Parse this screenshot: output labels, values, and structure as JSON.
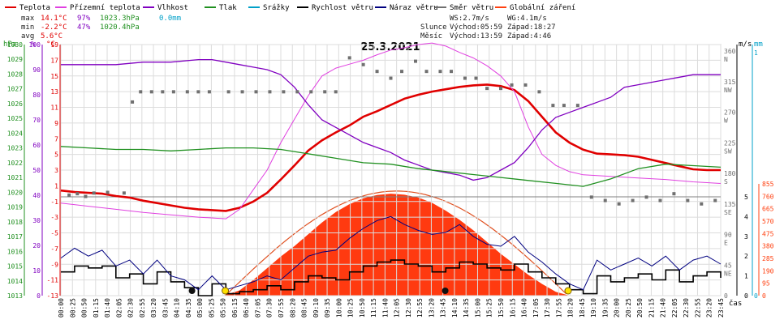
{
  "legend": [
    {
      "label": "Teplota",
      "color": "#e00000"
    },
    {
      "label": "Přízemní teplota",
      "color": "#e040e0"
    },
    {
      "label": "Vlhkost",
      "color": "#8000c0"
    },
    {
      "label": "Tlak",
      "color": "#209020"
    },
    {
      "label": "Srážky",
      "color": "#00a0c8"
    },
    {
      "label": "Rychlost větru",
      "color": "#000000"
    },
    {
      "label": "Náraz větru",
      "color": "#000080"
    },
    {
      "label": "Směr větru",
      "color": "#707070"
    },
    {
      "label": "Globální záření",
      "color": "#ff4010"
    }
  ],
  "stats": {
    "max": {
      "label": "max",
      "temp": "14.1°C",
      "hum": "97%",
      "press": "1023.3hPa",
      "rain": "0.0mm"
    },
    "min": {
      "label": "min",
      "temp": "-2.2°C",
      "hum": "47%",
      "press": "1020.4hPa"
    },
    "avg": {
      "label": "avg",
      "temp": "5.6°C"
    }
  },
  "wind_info": {
    "ws": "WS:2.7m/s",
    "wg": "WG:4.1m/s"
  },
  "sun_info": {
    "label": "Slunce",
    "rise": "Východ:05:59",
    "set": "Západ:18:27"
  },
  "moon_info": {
    "label": "Měsíc",
    "rise": "Východ:13:59",
    "set": "Západ:4:46"
  },
  "chart_data": {
    "type": "line",
    "title": "25.3.2021",
    "xlabel": "čas",
    "time_ticks": [
      "00:00",
      "00:25",
      "00:50",
      "01:15",
      "01:40",
      "02:05",
      "02:30",
      "02:55",
      "03:20",
      "03:45",
      "04:10",
      "04:35",
      "05:00",
      "05:25",
      "05:50",
      "06:15",
      "06:40",
      "07:05",
      "07:30",
      "07:55",
      "08:20",
      "08:45",
      "09:10",
      "09:35",
      "10:00",
      "10:25",
      "10:50",
      "11:15",
      "11:40",
      "12:05",
      "12:30",
      "12:55",
      "13:20",
      "13:45",
      "14:10",
      "14:35",
      "15:00",
      "15:25",
      "15:50",
      "16:15",
      "16:40",
      "17:05",
      "17:30",
      "17:55",
      "18:20",
      "18:45",
      "19:10",
      "19:35",
      "20:00",
      "20:25",
      "20:50",
      "21:15",
      "21:40",
      "22:05",
      "22:30",
      "22:55",
      "23:20",
      "23:45"
    ],
    "axes": {
      "pressure": {
        "label": "hPa",
        "color": "#209020",
        "ticks": [
          "1030",
          "1029",
          "1028",
          "1027",
          "1026",
          "1025",
          "1024",
          "1023",
          "1022",
          "1021",
          "1020",
          "1019",
          "1018",
          "1017",
          "1016",
          "1015",
          "1014",
          "1013"
        ],
        "ylim": [
          1013,
          1030
        ]
      },
      "humidity": {
        "label": "%",
        "color": "#8000c0",
        "ticks": [
          "100",
          "90",
          "80",
          "70",
          "60",
          "50",
          "40",
          "30",
          "20",
          "10",
          "0"
        ],
        "ylim": [
          0,
          100
        ]
      },
      "temperature": {
        "label": "°C",
        "color": "#e00000",
        "ticks": [
          "19",
          "17",
          "15",
          "13",
          "11",
          "9",
          "7",
          "5",
          "3",
          "1",
          "-1",
          "-3",
          "-5",
          "-7",
          "-9",
          "-11",
          "-13"
        ],
        "ylim": [
          -13,
          19
        ]
      },
      "direction": {
        "label": "",
        "color": "#707070",
        "ticks": [
          "360",
          "N",
          "315",
          "NW",
          "270",
          "W",
          "225",
          "SW",
          "180",
          "S",
          "135",
          "SE",
          "90",
          "E",
          "45",
          "NE",
          "0"
        ]
      },
      "wind": {
        "label": "m/s",
        "color": "#000000",
        "ticks": [
          "5",
          "4",
          "3",
          "2",
          "1",
          "0"
        ],
        "ylim": [
          0,
          5
        ]
      },
      "rain": {
        "label": "mm",
        "color": "#00a0c8",
        "ticks": [
          "1",
          "0"
        ],
        "ylim": [
          0,
          1
        ]
      },
      "radiation": {
        "label": "",
        "color": "#ff4010",
        "ticks": [
          "855",
          "760",
          "665",
          "570",
          "475",
          "380",
          "285",
          "190",
          "95",
          "0"
        ],
        "ylim": [
          0,
          855
        ]
      }
    },
    "series": [
      {
        "name": "Teplota",
        "color": "#e00000",
        "x_hours": [
          0,
          0.5,
          1,
          1.5,
          2,
          2.5,
          3,
          3.5,
          4,
          4.5,
          5,
          5.5,
          6,
          6.5,
          7,
          7.5,
          8,
          8.5,
          9,
          9.5,
          10,
          10.5,
          11,
          11.5,
          12,
          12.5,
          13,
          13.5,
          14,
          14.5,
          15,
          15.5,
          16,
          16.5,
          17,
          17.5,
          18,
          18.5,
          19,
          19.5,
          20,
          20.5,
          21,
          21.5,
          22,
          22.5,
          23,
          23.5,
          24
        ],
        "values": [
          0.4,
          0.2,
          0.1,
          0.0,
          -0.3,
          -0.5,
          -0.9,
          -1.2,
          -1.5,
          -1.8,
          -2.0,
          -2.1,
          -2.2,
          -1.8,
          -1.0,
          0.1,
          1.8,
          3.6,
          5.5,
          6.8,
          7.8,
          8.7,
          9.8,
          10.5,
          11.3,
          12.1,
          12.6,
          13.0,
          13.3,
          13.6,
          13.8,
          13.9,
          13.7,
          13.2,
          11.8,
          9.8,
          7.8,
          6.5,
          5.6,
          5.1,
          5.0,
          4.9,
          4.7,
          4.3,
          3.9,
          3.5,
          3.1,
          3.0,
          3.0
        ]
      },
      {
        "name": "Přízemní teplota",
        "color": "#e040e0",
        "x_hours": [
          0,
          1,
          2,
          3,
          4,
          5,
          6,
          6.5,
          7,
          7.5,
          8,
          8.5,
          9,
          9.5,
          10,
          10.5,
          11,
          11.5,
          12,
          12.5,
          13,
          13.5,
          14,
          14.5,
          15,
          15.5,
          16,
          16.5,
          17,
          17.5,
          18,
          18.5,
          19,
          20,
          21,
          22,
          23,
          24
        ],
        "values": [
          -1.2,
          -1.6,
          -2.0,
          -2.4,
          -2.7,
          -3.0,
          -3.2,
          -2.0,
          0.5,
          3.0,
          6.5,
          9.5,
          12.5,
          15.0,
          16.0,
          16.5,
          17.0,
          17.7,
          18.3,
          18.6,
          19.0,
          19.2,
          18.8,
          18.0,
          17.3,
          16.3,
          15.0,
          13.0,
          8.5,
          5.0,
          3.6,
          2.8,
          2.4,
          2.2,
          2.0,
          1.8,
          1.5,
          1.3
        ]
      },
      {
        "name": "Vlhkost",
        "color": "#8000c0",
        "x_hours": [
          0,
          1,
          2,
          3,
          4,
          5,
          5.5,
          6,
          6.5,
          7,
          7.5,
          8,
          8.5,
          9,
          9.5,
          10,
          10.5,
          11,
          11.5,
          12,
          12.5,
          13,
          13.5,
          14,
          14.5,
          15,
          15.5,
          16,
          16.5,
          17,
          17.5,
          18,
          18.5,
          19,
          19.5,
          20,
          20.5,
          21,
          21.5,
          22,
          22.5,
          23,
          23.5,
          24
        ],
        "values": [
          92,
          92,
          92,
          93,
          93,
          94,
          94,
          93,
          92,
          91,
          90,
          88,
          83,
          76,
          70,
          67,
          64,
          61,
          59,
          57,
          54,
          52,
          50,
          49,
          48,
          46,
          47,
          50,
          53,
          59,
          66,
          71,
          73,
          75,
          77,
          79,
          83,
          84,
          85,
          86,
          87,
          88,
          88,
          88
        ]
      },
      {
        "name": "Tlak",
        "color": "#209020",
        "x_hours": [
          0,
          1,
          2,
          3,
          4,
          5,
          6,
          7,
          8,
          9,
          10,
          11,
          12,
          13,
          14,
          15,
          16,
          17,
          18,
          19,
          20,
          21,
          22,
          23,
          24
        ],
        "values": [
          1023.1,
          1023.0,
          1022.9,
          1022.9,
          1022.8,
          1022.9,
          1023.0,
          1023.0,
          1022.9,
          1022.6,
          1022.3,
          1022.0,
          1021.9,
          1021.6,
          1021.4,
          1021.2,
          1021.0,
          1020.8,
          1020.6,
          1020.4,
          1020.9,
          1021.6,
          1021.9,
          1021.8,
          1021.7
        ]
      },
      {
        "name": "Globální záření",
        "color": "#ff4010",
        "x_hours": [
          5.9,
          6.5,
          7,
          7.5,
          8,
          8.5,
          9,
          9.5,
          10,
          10.5,
          11,
          11.5,
          12,
          12.5,
          13,
          13.5,
          14,
          14.5,
          15,
          15.5,
          16,
          16.5,
          17,
          17.5,
          18,
          18.5
        ],
        "values": [
          0,
          40,
          120,
          210,
          300,
          380,
          470,
          560,
          640,
          700,
          745,
          770,
          780,
          772,
          750,
          710,
          650,
          580,
          500,
          410,
          320,
          240,
          160,
          90,
          30,
          0
        ]
      },
      {
        "name": "Rychlost větru",
        "color": "#000000",
        "x_hours": [
          0,
          0.5,
          1,
          1.5,
          2,
          2.5,
          3,
          3.5,
          4,
          4.5,
          5,
          5.5,
          6,
          6.5,
          7,
          7.5,
          8,
          8.5,
          9,
          9.5,
          10,
          10.5,
          11,
          11.5,
          12,
          12.5,
          13,
          13.5,
          14,
          14.5,
          15,
          15.5,
          16,
          16.5,
          17,
          17.5,
          18,
          18.5,
          19,
          19.5,
          20,
          20.5,
          21,
          21.5,
          22,
          22.5,
          23,
          23.5,
          24
        ],
        "values": [
          1.2,
          1.5,
          1.4,
          1.5,
          0.9,
          1.1,
          0.6,
          1.2,
          0.7,
          0.4,
          0.0,
          0.6,
          0.1,
          0.2,
          0.3,
          0.5,
          0.3,
          0.7,
          1.0,
          0.9,
          0.8,
          1.2,
          1.5,
          1.7,
          1.8,
          1.6,
          1.5,
          1.2,
          1.4,
          1.7,
          1.6,
          1.4,
          1.3,
          1.6,
          1.2,
          0.9,
          0.6,
          0.3,
          0.1,
          1.0,
          0.7,
          0.9,
          1.1,
          0.8,
          1.3,
          0.7,
          1.0,
          1.2,
          0.9
        ]
      },
      {
        "name": "Náraz větru",
        "color": "#000080",
        "x_hours": [
          0,
          0.5,
          1,
          1.5,
          2,
          2.5,
          3,
          3.5,
          4,
          4.5,
          5,
          5.5,
          6,
          6.5,
          7,
          7.5,
          8,
          8.5,
          9,
          9.5,
          10,
          10.5,
          11,
          11.5,
          12,
          12.5,
          13,
          13.5,
          14,
          14.5,
          15,
          15.5,
          16,
          16.5,
          17,
          17.5,
          18,
          18.5,
          19,
          19.5,
          20,
          20.5,
          21,
          21.5,
          22,
          22.5,
          23,
          23.5,
          24
        ],
        "values": [
          1.9,
          2.4,
          2.0,
          2.3,
          1.5,
          1.8,
          1.1,
          1.8,
          1.0,
          0.8,
          0.3,
          1.0,
          0.3,
          0.5,
          0.7,
          1.0,
          0.8,
          1.4,
          2.0,
          2.2,
          2.3,
          2.9,
          3.4,
          3.8,
          4.0,
          3.6,
          3.3,
          3.1,
          3.2,
          3.6,
          3.0,
          2.6,
          2.5,
          3.0,
          2.2,
          1.7,
          1.1,
          0.6,
          0.3,
          1.8,
          1.3,
          1.6,
          1.9,
          1.5,
          2.0,
          1.3,
          1.8,
          2.0,
          1.6
        ]
      }
    ],
    "wind_direction_points": {
      "name": "Směr větru",
      "color": "#707070",
      "x_hours": [
        0.3,
        0.6,
        0.9,
        1.2,
        1.7,
        2.3,
        2.6,
        2.9,
        3.3,
        3.7,
        4.1,
        4.6,
        5.0,
        5.4,
        6.1,
        6.6,
        7.1,
        7.6,
        8.1,
        8.6,
        9.1,
        9.6,
        10.0,
        10.5,
        11.0,
        11.5,
        12.0,
        12.4,
        12.9,
        13.3,
        13.8,
        14.2,
        14.7,
        15.1,
        15.5,
        16.0,
        16.4,
        16.9,
        17.4,
        17.9,
        18.3,
        18.8,
        19.3,
        19.8,
        20.3,
        20.8,
        21.3,
        21.8,
        22.3,
        22.8,
        23.3,
        23.8
      ],
      "values": [
        148,
        150,
        146,
        151,
        152,
        151,
        285,
        300,
        300,
        300,
        300,
        300,
        300,
        300,
        300,
        300,
        300,
        300,
        300,
        300,
        300,
        300,
        300,
        350,
        340,
        330,
        320,
        330,
        345,
        330,
        330,
        330,
        320,
        320,
        305,
        305,
        310,
        310,
        300,
        280,
        280,
        280,
        145,
        140,
        135,
        140,
        145,
        140,
        150,
        140,
        135,
        140
      ]
    },
    "markers": {
      "sunrise_hour": 5.98,
      "sunset_hour": 18.45,
      "moonrise_hour": 13.98,
      "moonset_hour": 4.77
    }
  }
}
